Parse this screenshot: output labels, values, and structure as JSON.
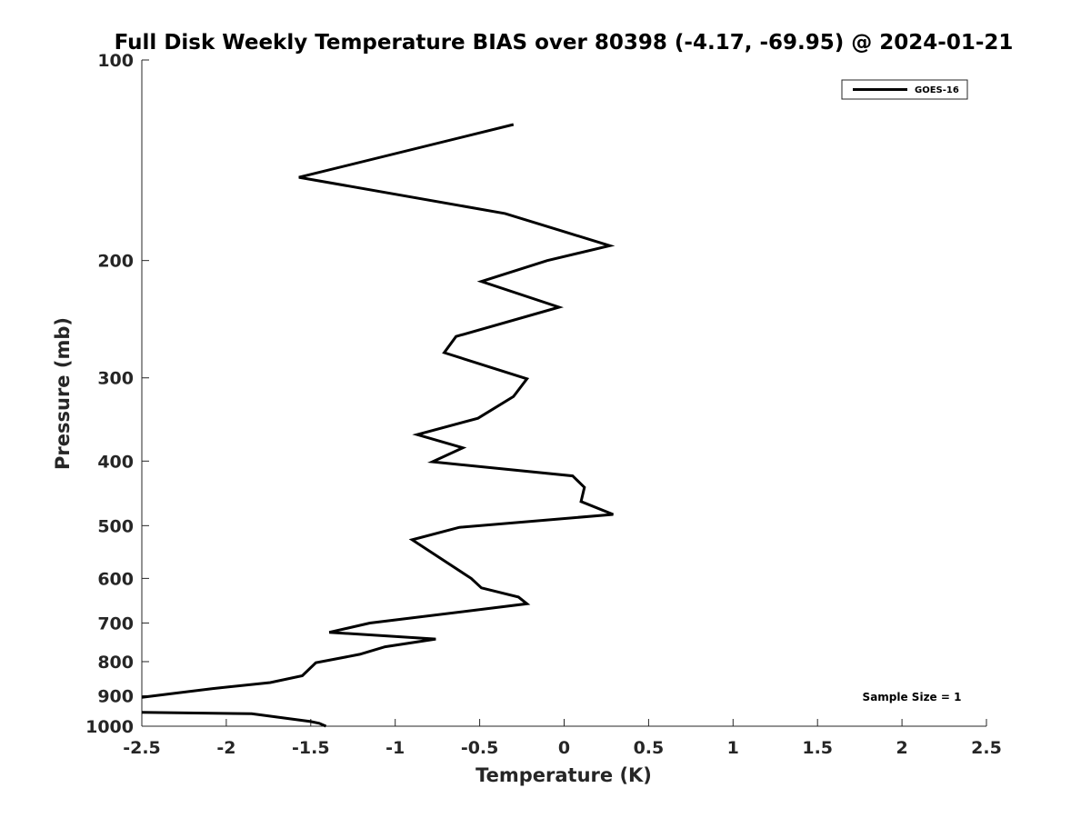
{
  "chart_data": {
    "type": "line",
    "title": "Full Disk Weekly Temperature BIAS over 80398 (-4.17, -69.95) @ 2024-01-21",
    "xlabel": "Temperature (K)",
    "ylabel": "Pressure (mb)",
    "xlim": [
      -2.5,
      2.5
    ],
    "ylim": [
      100,
      1000
    ],
    "yscale": "log",
    "yreversed": true,
    "xticks": [
      -2.5,
      -2,
      -1.5,
      -1,
      -0.5,
      0,
      0.5,
      1,
      1.5,
      2,
      2.5
    ],
    "xtick_labels": [
      "-2.5",
      "-2",
      "-1.5",
      "-1",
      "-0.5",
      "0",
      "0.5",
      "1",
      "1.5",
      "2",
      "2.5"
    ],
    "yticks": [
      100,
      200,
      300,
      400,
      500,
      600,
      700,
      800,
      900,
      1000
    ],
    "ytick_labels": [
      "100",
      "200",
      "300",
      "400",
      "500",
      "600",
      "700",
      "800",
      "900",
      "1000"
    ],
    "grid": false,
    "legend_position": "top-right",
    "series": [
      {
        "name": "GOES-16",
        "color": "#000000",
        "points": [
          {
            "x": -0.3,
            "p": 125
          },
          {
            "x": -1.57,
            "p": 150
          },
          {
            "x": -0.35,
            "p": 170
          },
          {
            "x": 0.27,
            "p": 190
          },
          {
            "x": -0.1,
            "p": 200
          },
          {
            "x": -0.49,
            "p": 215
          },
          {
            "x": -0.03,
            "p": 235
          },
          {
            "x": -0.64,
            "p": 260
          },
          {
            "x": -0.71,
            "p": 275
          },
          {
            "x": -0.22,
            "p": 301
          },
          {
            "x": -0.3,
            "p": 320
          },
          {
            "x": -0.51,
            "p": 345
          },
          {
            "x": -0.87,
            "p": 365
          },
          {
            "x": -0.6,
            "p": 382
          },
          {
            "x": -0.78,
            "p": 401
          },
          {
            "x": 0.05,
            "p": 421
          },
          {
            "x": 0.12,
            "p": 438
          },
          {
            "x": 0.1,
            "p": 460
          },
          {
            "x": 0.29,
            "p": 481
          },
          {
            "x": -0.62,
            "p": 503
          },
          {
            "x": -0.9,
            "p": 525
          },
          {
            "x": -0.55,
            "p": 600
          },
          {
            "x": -0.49,
            "p": 620
          },
          {
            "x": -0.27,
            "p": 640
          },
          {
            "x": -0.22,
            "p": 655
          },
          {
            "x": -1.15,
            "p": 700
          },
          {
            "x": -1.39,
            "p": 723
          },
          {
            "x": -0.76,
            "p": 740
          },
          {
            "x": -1.06,
            "p": 760
          },
          {
            "x": -1.21,
            "p": 780
          },
          {
            "x": -1.47,
            "p": 803
          },
          {
            "x": -1.55,
            "p": 840
          },
          {
            "x": -1.74,
            "p": 860
          },
          {
            "x": -2.08,
            "p": 878
          },
          {
            "x": -2.5,
            "p": 905
          },
          {
            "x": null,
            "p": null
          },
          {
            "x": -2.5,
            "p": 953
          },
          {
            "x": -1.85,
            "p": 958
          },
          {
            "x": -1.5,
            "p": 984
          },
          {
            "x": -1.45,
            "p": 990
          },
          {
            "x": -1.41,
            "p": 1000
          }
        ]
      }
    ],
    "annotation": "Sample Size = 1"
  }
}
